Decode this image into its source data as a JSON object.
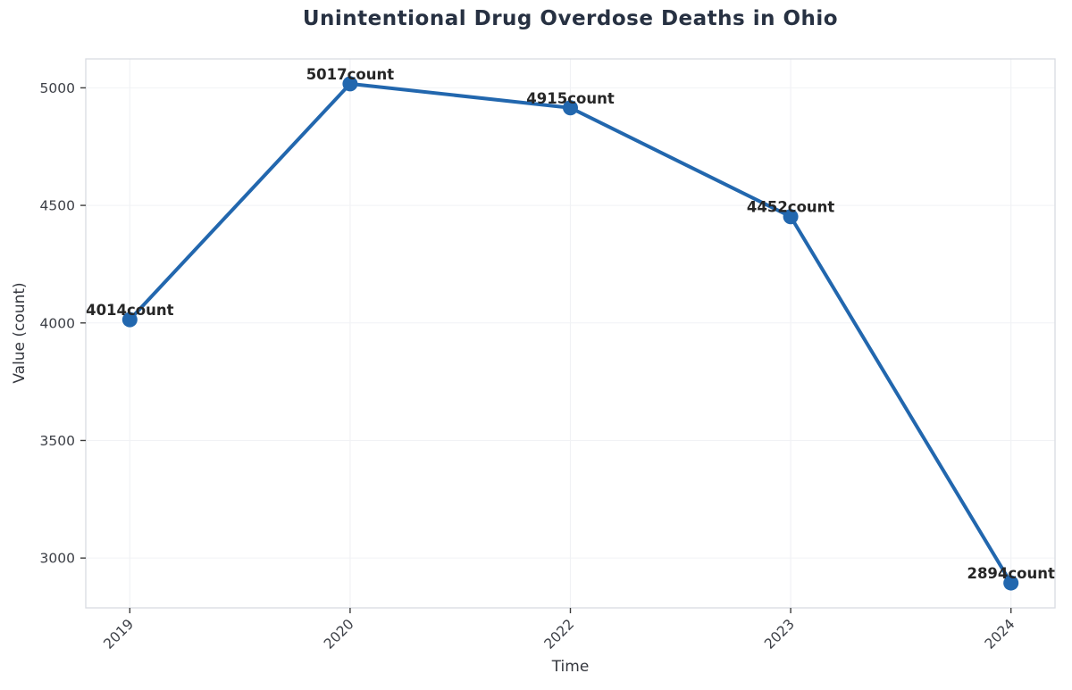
{
  "page": {
    "background": "#ffffff"
  },
  "chart_data": {
    "type": "line",
    "title": "Unintentional Drug Overdose Deaths in Ohio",
    "xlabel": "Time",
    "ylabel": "Value (count)",
    "categories": [
      "2019",
      "2020",
      "2022",
      "2023",
      "2024"
    ],
    "series": [
      {
        "name": "count",
        "values": [
          4014,
          5017,
          4915,
          4452,
          2894
        ],
        "point_labels": [
          "4014count",
          "5017count",
          "4915count",
          "4452count",
          "2894count"
        ]
      }
    ],
    "yticks": [
      3000,
      3500,
      4000,
      4500,
      5000
    ],
    "ylim": [
      2788,
      5123
    ],
    "grid": true,
    "legend_position": "none",
    "colors": {
      "line": "#2267ae",
      "marker": "#2267ae",
      "title": "#273142",
      "tick_label": "#3c3f46",
      "axis_label": "#33363d",
      "point_label": "#262626",
      "spine": "#d9dce2",
      "grid": "#f1f2f5",
      "tick_mark": "#3c3c3c"
    }
  }
}
